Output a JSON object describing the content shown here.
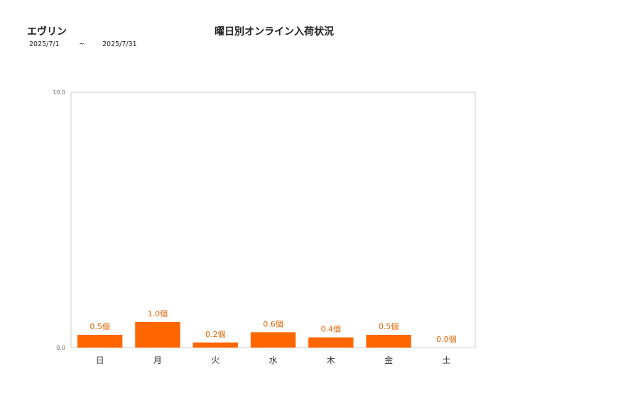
{
  "header": {
    "brand": "エヴリン",
    "title": "曜日別オンライン入荷状況",
    "date_from": "2025/7/1",
    "date_sep": "~",
    "date_to": "2025/7/31"
  },
  "colors": {
    "bar": "#ff6600",
    "label": "#e06400",
    "axis": "#cccccc",
    "tick_text": "#666666"
  },
  "chart_data": {
    "type": "bar",
    "categories": [
      "日",
      "月",
      "火",
      "水",
      "木",
      "金",
      "土"
    ],
    "values": [
      0.5,
      1.0,
      0.2,
      0.6,
      0.4,
      0.5,
      0.0
    ],
    "value_labels": [
      "0.5個",
      "1.0個",
      "0.2個",
      "0.6個",
      "0.4個",
      "0.5個",
      "0.0個"
    ],
    "y_ticks": [
      "0.0",
      "10.0"
    ],
    "ylim": [
      0,
      10
    ],
    "title": "曜日別オンライン入荷状況",
    "xlabel": "",
    "ylabel": "",
    "grid": false,
    "legend": "none"
  }
}
